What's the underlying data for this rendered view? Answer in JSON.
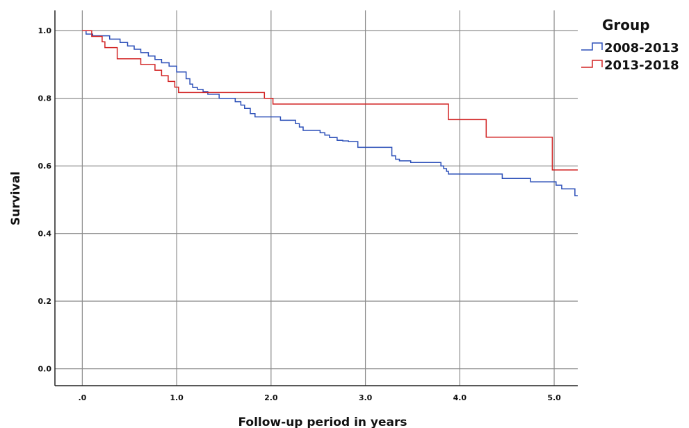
{
  "chart_data": {
    "type": "line",
    "step": true,
    "xlabel": "Follow-up period in years",
    "ylabel": "Survival",
    "xlim": [
      -0.29,
      5.25
    ],
    "ylim": [
      -0.05,
      1.06
    ],
    "x_ticks": [
      {
        "value": 0,
        "label": ".0"
      },
      {
        "value": 1,
        "label": "1.0"
      },
      {
        "value": 2,
        "label": "2.0"
      },
      {
        "value": 3,
        "label": "3.0"
      },
      {
        "value": 4,
        "label": "4.0"
      },
      {
        "value": 5,
        "label": "5.0"
      }
    ],
    "y_ticks": [
      {
        "value": 0,
        "label": "0.0"
      },
      {
        "value": 0.2,
        "label": "0.2"
      },
      {
        "value": 0.4,
        "label": "0.4"
      },
      {
        "value": 0.6,
        "label": "0.6"
      },
      {
        "value": 0.8,
        "label": "0.8"
      },
      {
        "value": 1.0,
        "label": "1.0"
      }
    ],
    "grid": true,
    "legend": {
      "title": "Group",
      "position": "top-right"
    },
    "series": [
      {
        "name": "2008-2013",
        "color": "#2b4fb8",
        "x": [
          0,
          0.04,
          0.11,
          0.29,
          0.4,
          0.48,
          0.55,
          0.62,
          0.7,
          0.77,
          0.84,
          0.92,
          1.0,
          1.1,
          1.14,
          1.17,
          1.22,
          1.28,
          1.33,
          1.45,
          1.62,
          1.68,
          1.72,
          1.78,
          1.83,
          2.1,
          2.26,
          2.3,
          2.34,
          2.52,
          2.57,
          2.62,
          2.7,
          2.76,
          2.82,
          2.92,
          3.28,
          3.32,
          3.36,
          3.48,
          3.8,
          3.83,
          3.86,
          3.88,
          4.45,
          4.75,
          5.02,
          5.08,
          5.22,
          5.25
        ],
        "y": [
          1.0,
          0.99,
          0.985,
          0.975,
          0.965,
          0.955,
          0.945,
          0.935,
          0.925,
          0.915,
          0.905,
          0.895,
          0.878,
          0.858,
          0.842,
          0.832,
          0.826,
          0.82,
          0.812,
          0.8,
          0.79,
          0.78,
          0.77,
          0.755,
          0.745,
          0.735,
          0.725,
          0.715,
          0.705,
          0.698,
          0.691,
          0.684,
          0.676,
          0.674,
          0.672,
          0.655,
          0.63,
          0.62,
          0.615,
          0.61,
          0.6,
          0.592,
          0.584,
          0.576,
          0.563,
          0.553,
          0.543,
          0.532,
          0.512,
          0.512
        ]
      },
      {
        "name": "2013-2018",
        "color": "#d22323",
        "x": [
          0,
          0.1,
          0.21,
          0.24,
          0.37,
          0.62,
          0.77,
          0.84,
          0.91,
          0.98,
          1.02,
          1.93,
          2.02,
          3.88,
          4.28,
          4.98,
          5.25
        ],
        "y": [
          1.0,
          0.983,
          0.967,
          0.95,
          0.917,
          0.9,
          0.883,
          0.867,
          0.85,
          0.833,
          0.817,
          0.8,
          0.783,
          0.737,
          0.685,
          0.588,
          0.588
        ]
      }
    ]
  }
}
